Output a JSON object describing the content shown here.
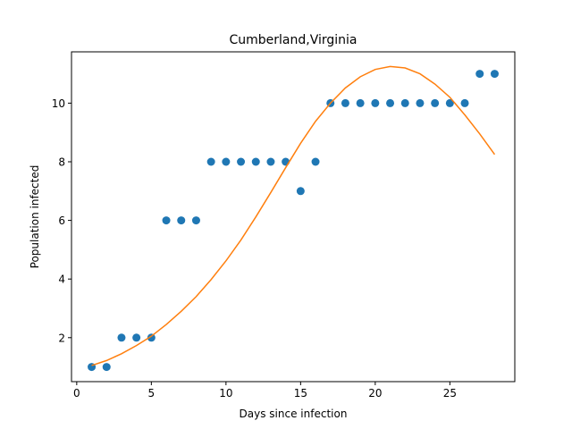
{
  "chart_data": {
    "type": "scatter",
    "title": "Cumberland,Virginia",
    "xlabel": "Days since infection",
    "ylabel": "Population infected",
    "xlim": [
      -0.35,
      29.35
    ],
    "ylim": [
      0.5,
      11.75
    ],
    "xticks": [
      0,
      5,
      10,
      15,
      20,
      25
    ],
    "yticks": [
      2,
      4,
      6,
      8,
      10
    ],
    "grid": false,
    "series": [
      {
        "kind": "scatter",
        "color": "#1f77b4",
        "x": [
          1,
          2,
          3,
          4,
          5,
          6,
          7,
          8,
          9,
          10,
          11,
          12,
          13,
          14,
          15,
          16,
          17,
          18,
          19,
          20,
          21,
          22,
          23,
          24,
          25,
          26,
          27,
          28
        ],
        "y": [
          1,
          1,
          2,
          2,
          2,
          6,
          6,
          6,
          8,
          8,
          8,
          8,
          8,
          8,
          7,
          8,
          10,
          10,
          10,
          10,
          10,
          10,
          10,
          10,
          10,
          10,
          11,
          11
        ]
      },
      {
        "kind": "line",
        "color": "#ff7f0e",
        "x": [
          1,
          2,
          3,
          4,
          5,
          6,
          7,
          8,
          9,
          10,
          11,
          12,
          13,
          14,
          15,
          16,
          17,
          18,
          19,
          20,
          21,
          22,
          23,
          24,
          25,
          26,
          27,
          28
        ],
        "y": [
          1.05,
          1.22,
          1.45,
          1.73,
          2.05,
          2.45,
          2.9,
          3.4,
          3.98,
          4.62,
          5.33,
          6.12,
          6.95,
          7.8,
          8.63,
          9.38,
          10.0,
          10.52,
          10.9,
          11.15,
          11.25,
          11.2,
          11.0,
          10.65,
          10.2,
          9.6,
          8.95,
          8.25
        ]
      }
    ]
  }
}
